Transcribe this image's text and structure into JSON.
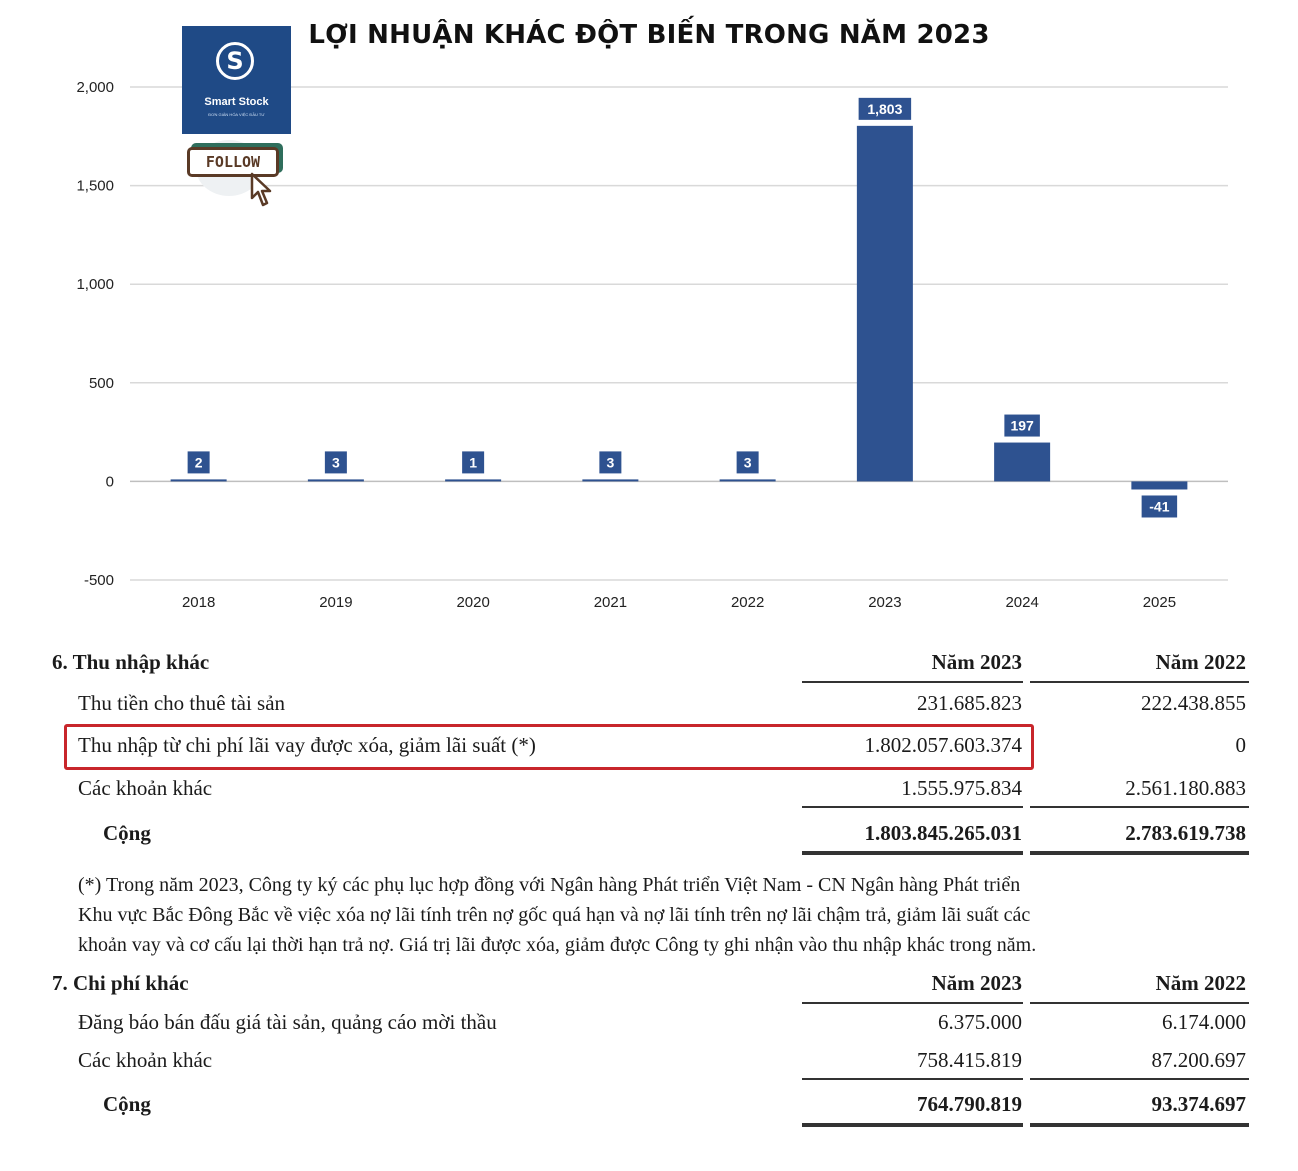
{
  "chart_data": {
    "type": "bar",
    "title": "LỢI NHUẬN KHÁC ĐỘT BIẾN TRONG NĂM 2023",
    "categories": [
      "2018",
      "2019",
      "2020",
      "2021",
      "2022",
      "2023",
      "2024",
      "2025"
    ],
    "values": [
      2,
      3,
      1,
      3,
      3,
      1803,
      197,
      -41
    ],
    "data_labels": [
      "2",
      "3",
      "1",
      "3",
      "3",
      "1,803",
      "197",
      "-41"
    ],
    "y_ticks": [
      2000,
      1500,
      1000,
      500,
      0,
      -500
    ],
    "y_tick_labels": [
      "2,000",
      "1,500",
      "1,000",
      "500",
      "0",
      "-500"
    ],
    "ylim": [
      -500,
      2000
    ],
    "grid": true,
    "bar_color": "#2e5290"
  },
  "logo": {
    "glyph": "S",
    "name": "Smart Stock",
    "tagline": "ĐƠN GIẢN HÓA VIỆC ĐẦU TƯ",
    "follow_label": "FOLLOW",
    "color": "#1f4a86"
  },
  "other_income": {
    "title": "6. Thu nhập khác",
    "col_2023": "Năm 2023",
    "col_2022": "Năm 2022",
    "rows": [
      {
        "label": "Thu tiền cho thuê tài sản",
        "v2023": "231.685.823",
        "v2022": "222.438.855"
      },
      {
        "label": "Thu nhập từ chi phí lãi vay được xóa, giảm lãi suất (*)",
        "v2023": "1.802.057.603.374",
        "v2022": "0"
      },
      {
        "label": "Các khoản khác",
        "v2023": "1.555.975.834",
        "v2022": "2.561.180.883"
      }
    ],
    "total": {
      "label": "Cộng",
      "v2023": "1.803.845.265.031",
      "v2022": "2.783.619.738"
    },
    "note": [
      "(*) Trong năm 2023, Công ty ký các phụ lục hợp đồng với Ngân hàng Phát triển Việt Nam - CN Ngân hàng Phát triển",
      "Khu vực Bắc Đông Bắc về việc xóa nợ lãi tính trên nợ gốc quá hạn và nợ lãi tính trên nợ lãi chậm trả, giảm lãi suất các",
      "khoản vay và cơ cấu lại thời hạn trả nợ. Giá trị lãi được xóa, giảm được Công ty ghi nhận vào thu nhập khác trong năm."
    ],
    "highlight_color": "#c8262b"
  },
  "other_expenses": {
    "title": "7. Chi phí khác",
    "col_2023": "Năm 2023",
    "col_2022": "Năm 2022",
    "rows": [
      {
        "label": "Đăng báo bán đấu giá tài sản, quảng cáo mời thầu",
        "v2023": "6.375.000",
        "v2022": "6.174.000"
      },
      {
        "label": "Các khoản khác",
        "v2023": "758.415.819",
        "v2022": "87.200.697"
      }
    ],
    "total": {
      "label": "Cộng",
      "v2023": "764.790.819",
      "v2022": "93.374.697"
    }
  }
}
